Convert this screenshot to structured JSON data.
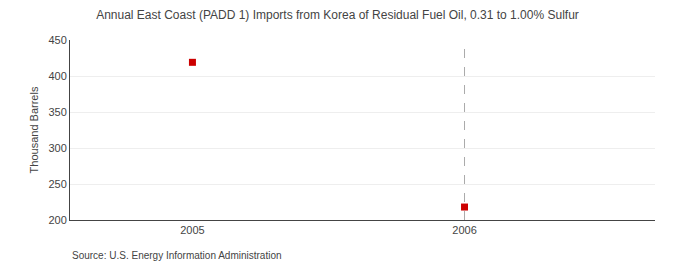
{
  "chart_data": {
    "type": "scatter",
    "title": "Annual East Coast (PADD 1) Imports from Korea of Residual Fuel Oil, 0.31 to 1.00% Sulfur",
    "ylabel": "Thousand Barrels",
    "source": "Source: U.S. Energy Information Administration",
    "x": [
      2005,
      2006
    ],
    "values": [
      419,
      218
    ],
    "color": "#cc0000",
    "marker": "square",
    "xlim": [
      2004.55,
      2006.7
    ],
    "xticks": [
      2005,
      2006
    ],
    "ylim": [
      200,
      450
    ],
    "yticks": [
      200,
      250,
      300,
      350,
      400,
      450
    ],
    "grid": true,
    "vline": {
      "x": 2006,
      "color": "#aaaaaa",
      "line_style": "dash"
    }
  }
}
